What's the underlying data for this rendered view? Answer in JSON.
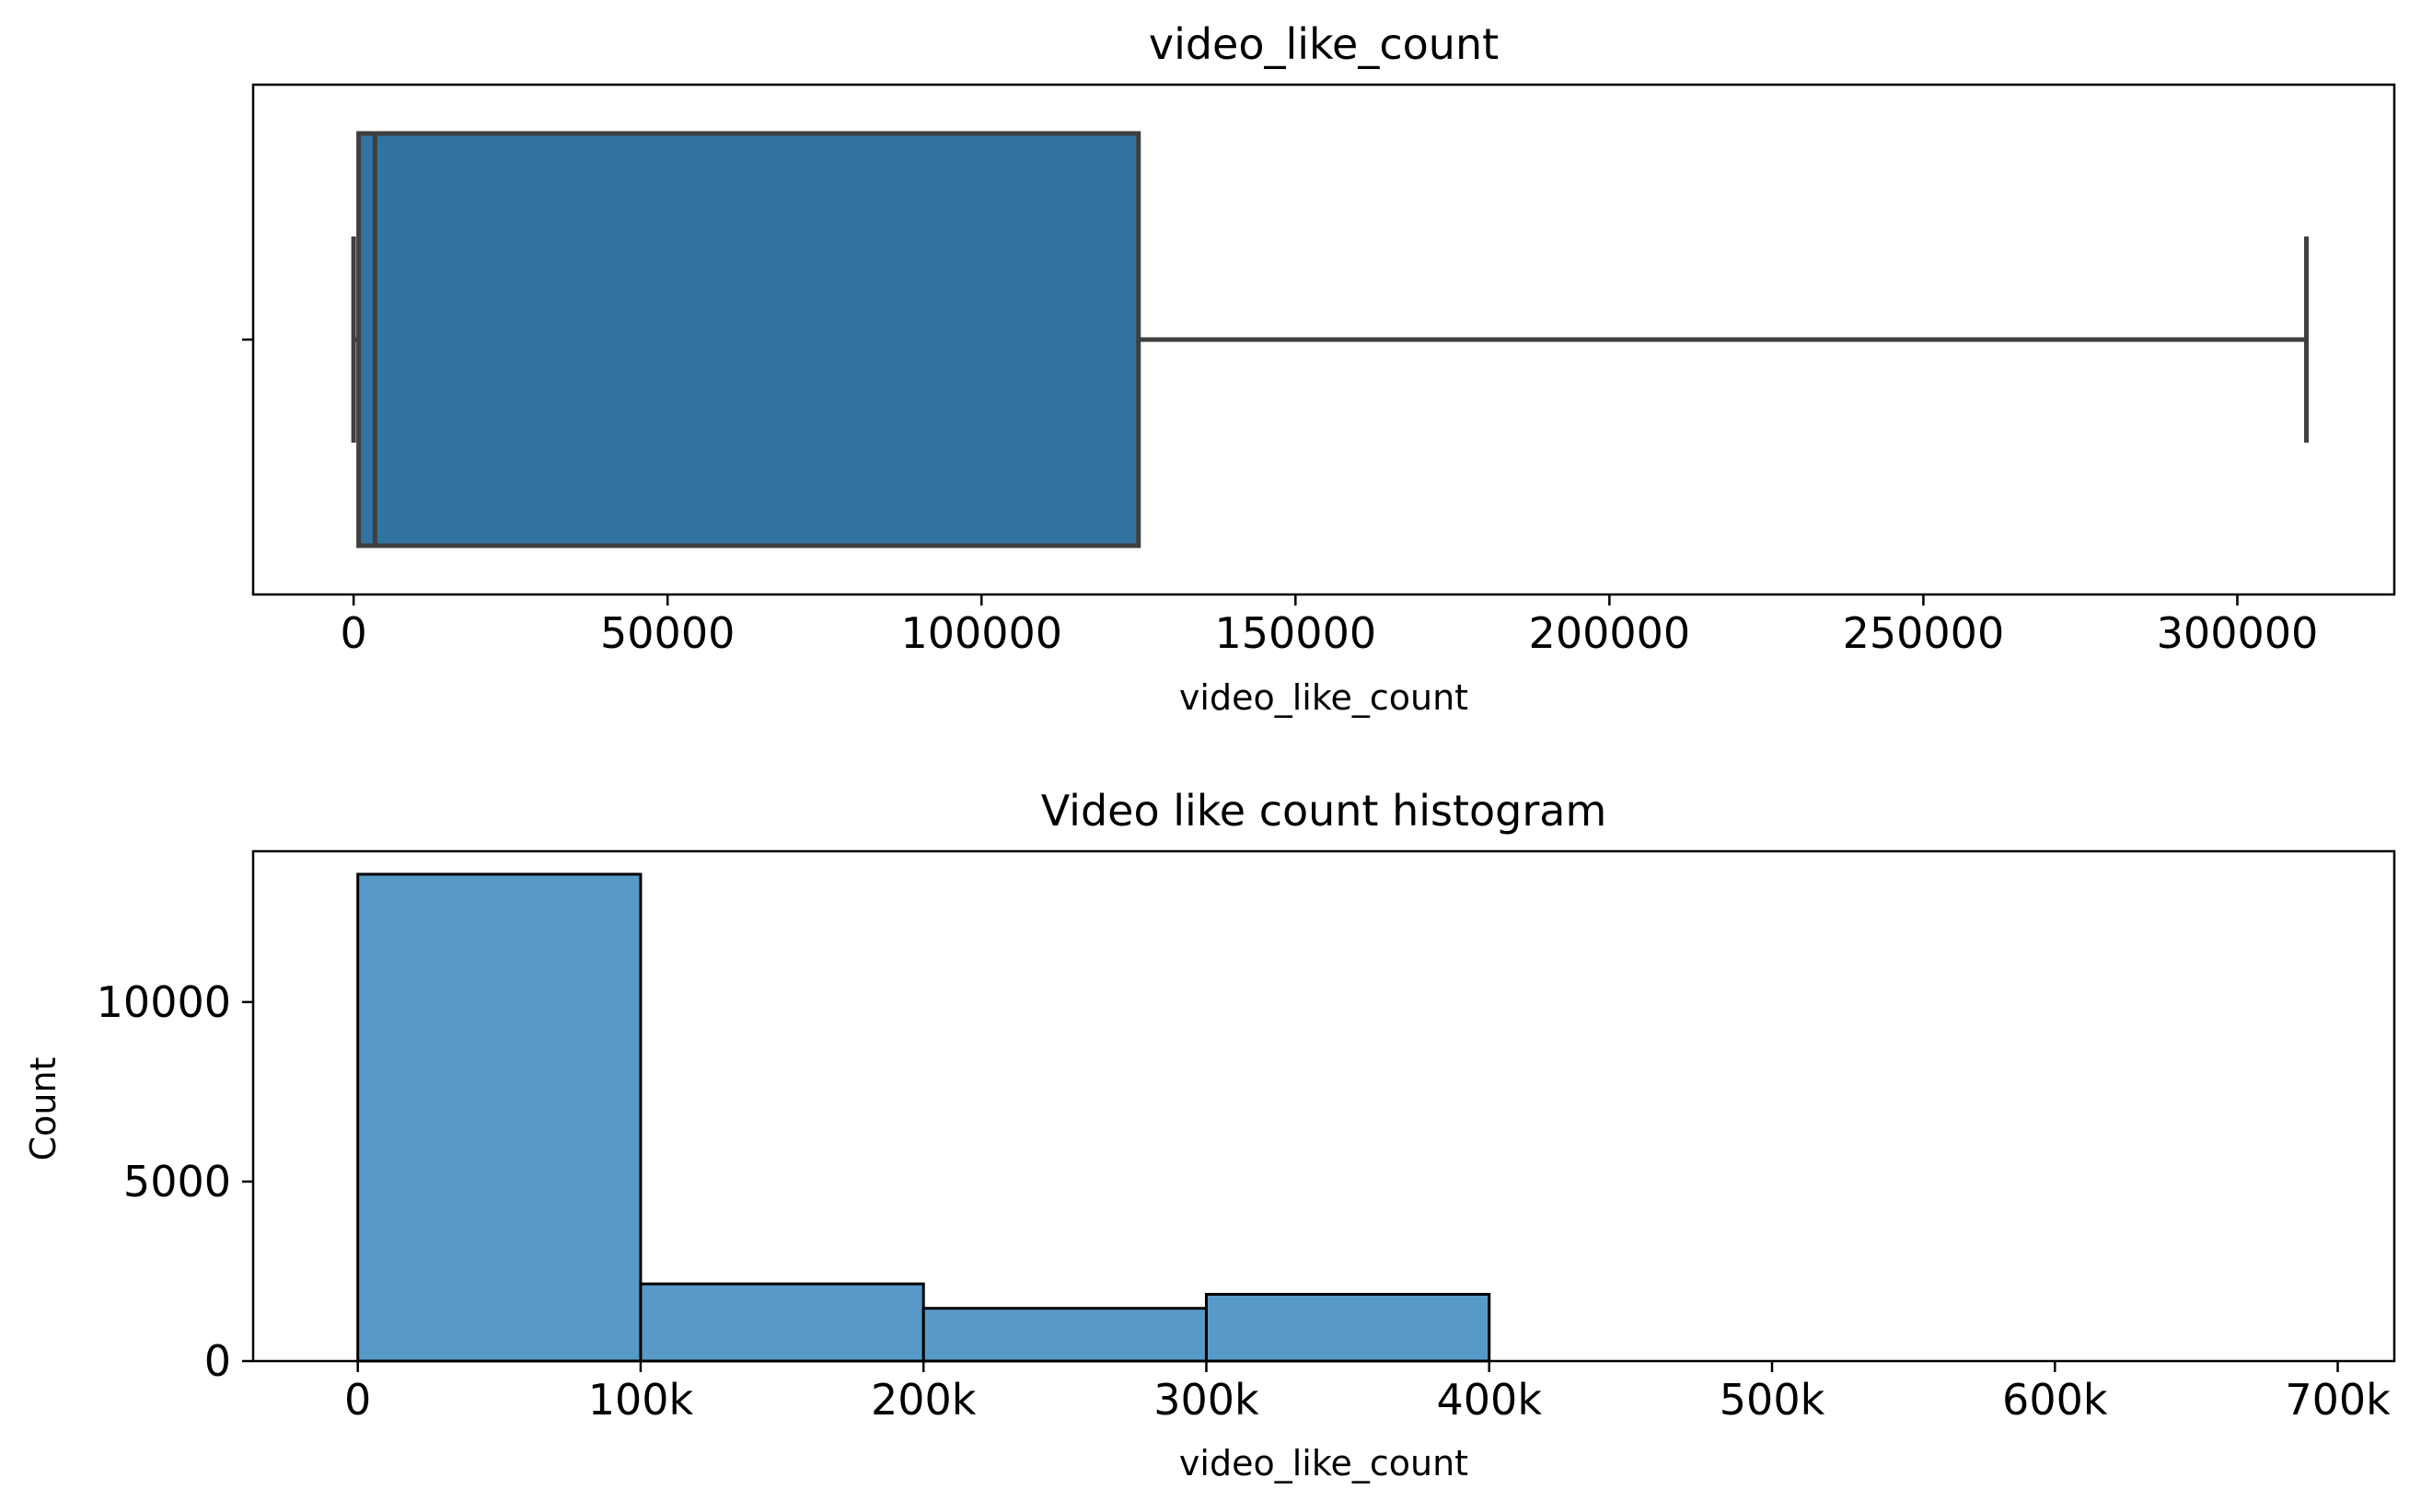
{
  "colors": {
    "box_fill": "#3274a1",
    "box_edge": "#3f3f3f",
    "bar_fill": "#5799c7",
    "bar_edge": "#000000",
    "axes_edge": "#000000",
    "background": "#ffffff"
  },
  "chart_data": [
    {
      "type": "box",
      "title": "video_like_count",
      "xlabel": "video_like_count",
      "ylabel": "",
      "xlim": [
        -16000,
        325000
      ],
      "xticks": [
        0,
        50000,
        100000,
        150000,
        200000,
        250000,
        300000
      ],
      "xtick_labels": [
        "0",
        "50000",
        "100000",
        "150000",
        "200000",
        "250000",
        "300000"
      ],
      "orientation": "horizontal",
      "whisker_low": 0,
      "q1": 800,
      "median": 3400,
      "q3": 125000,
      "whisker_high": 311000,
      "grid": false
    },
    {
      "type": "bar",
      "subtype": "histogram",
      "title": "Video like count histogram",
      "xlabel": "video_like_count",
      "ylabel": "Count",
      "xlim": [
        -37000,
        720000
      ],
      "ylim": [
        0,
        14200
      ],
      "xticks": [
        0,
        100000,
        200000,
        300000,
        400000,
        500000,
        600000,
        700000
      ],
      "xtick_labels": [
        "0",
        "100k",
        "200k",
        "300k",
        "400k",
        "500k",
        "600k",
        "700k"
      ],
      "yticks": [
        0,
        5000,
        10000
      ],
      "ytick_labels": [
        "0",
        "5000",
        "10000"
      ],
      "bins": [
        {
          "x0": 0,
          "x1": 100000,
          "count": 13560
        },
        {
          "x0": 100000,
          "x1": 200000,
          "count": 2150
        },
        {
          "x0": 200000,
          "x1": 300000,
          "count": 1470
        },
        {
          "x0": 300000,
          "x1": 400000,
          "count": 1860
        },
        {
          "x0": 400000,
          "x1": 500000,
          "count": 0
        },
        {
          "x0": 500000,
          "x1": 600000,
          "count": 0
        },
        {
          "x0": 600000,
          "x1": 700000,
          "count": 0
        }
      ],
      "grid": false
    }
  ]
}
